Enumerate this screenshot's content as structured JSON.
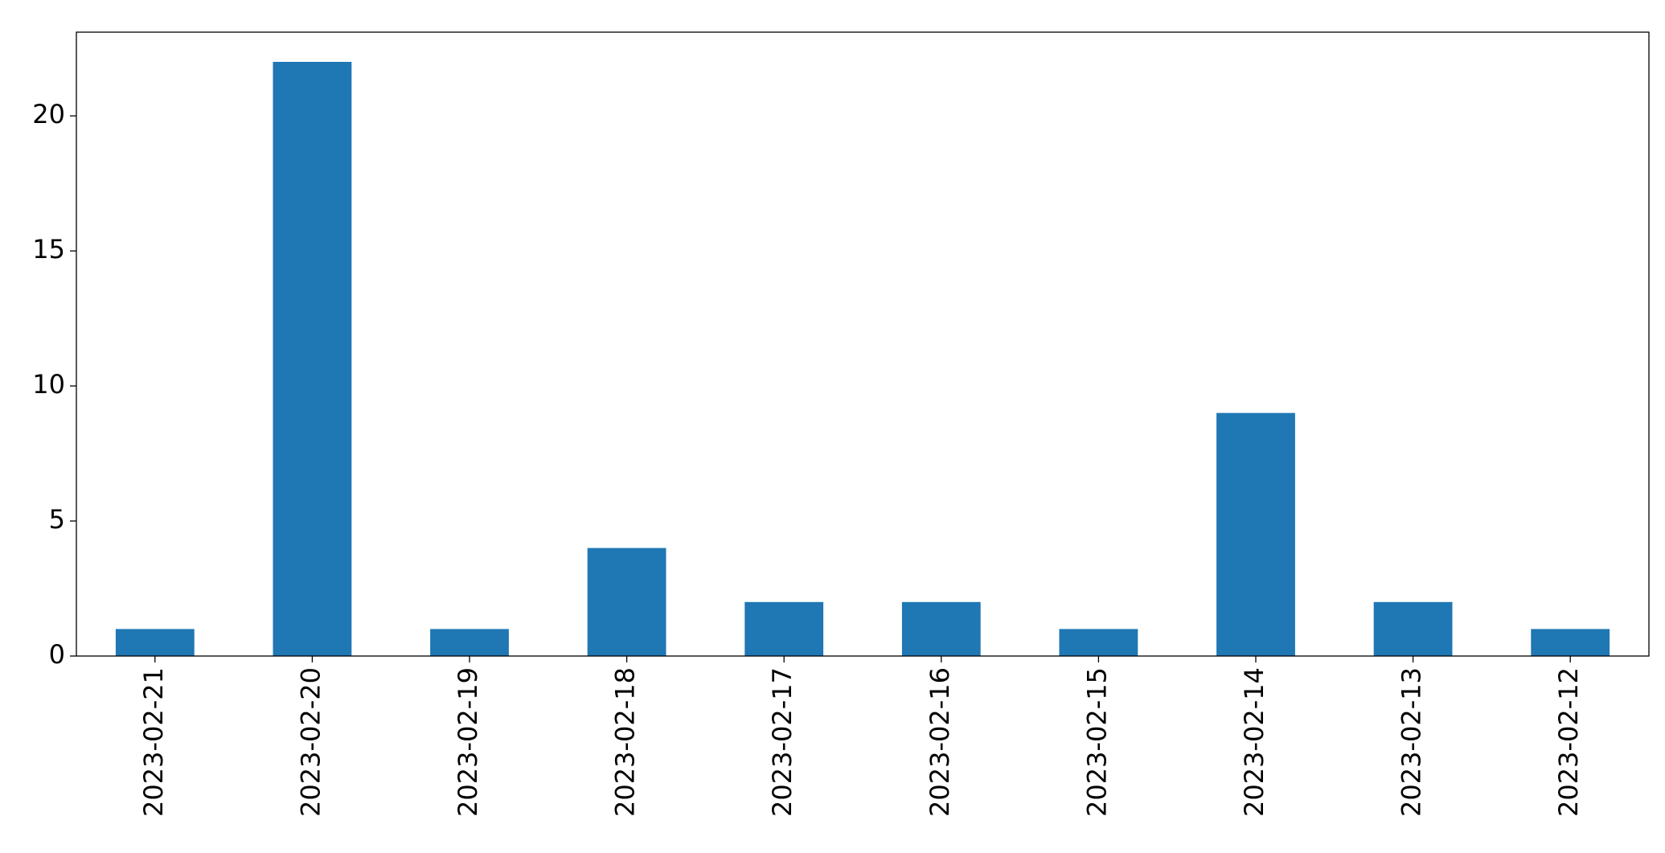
{
  "chart_data": {
    "type": "bar",
    "categories": [
      "2023-02-21",
      "2023-02-20",
      "2023-02-19",
      "2023-02-18",
      "2023-02-17",
      "2023-02-16",
      "2023-02-15",
      "2023-02-14",
      "2023-02-13",
      "2023-02-12"
    ],
    "values": [
      1,
      22,
      1,
      4,
      2,
      2,
      1,
      9,
      2,
      1
    ],
    "color": "#1f77b4",
    "ylim": [
      0,
      23.1
    ],
    "yticks": [
      0,
      5,
      10,
      15,
      20
    ],
    "grid": false
  }
}
